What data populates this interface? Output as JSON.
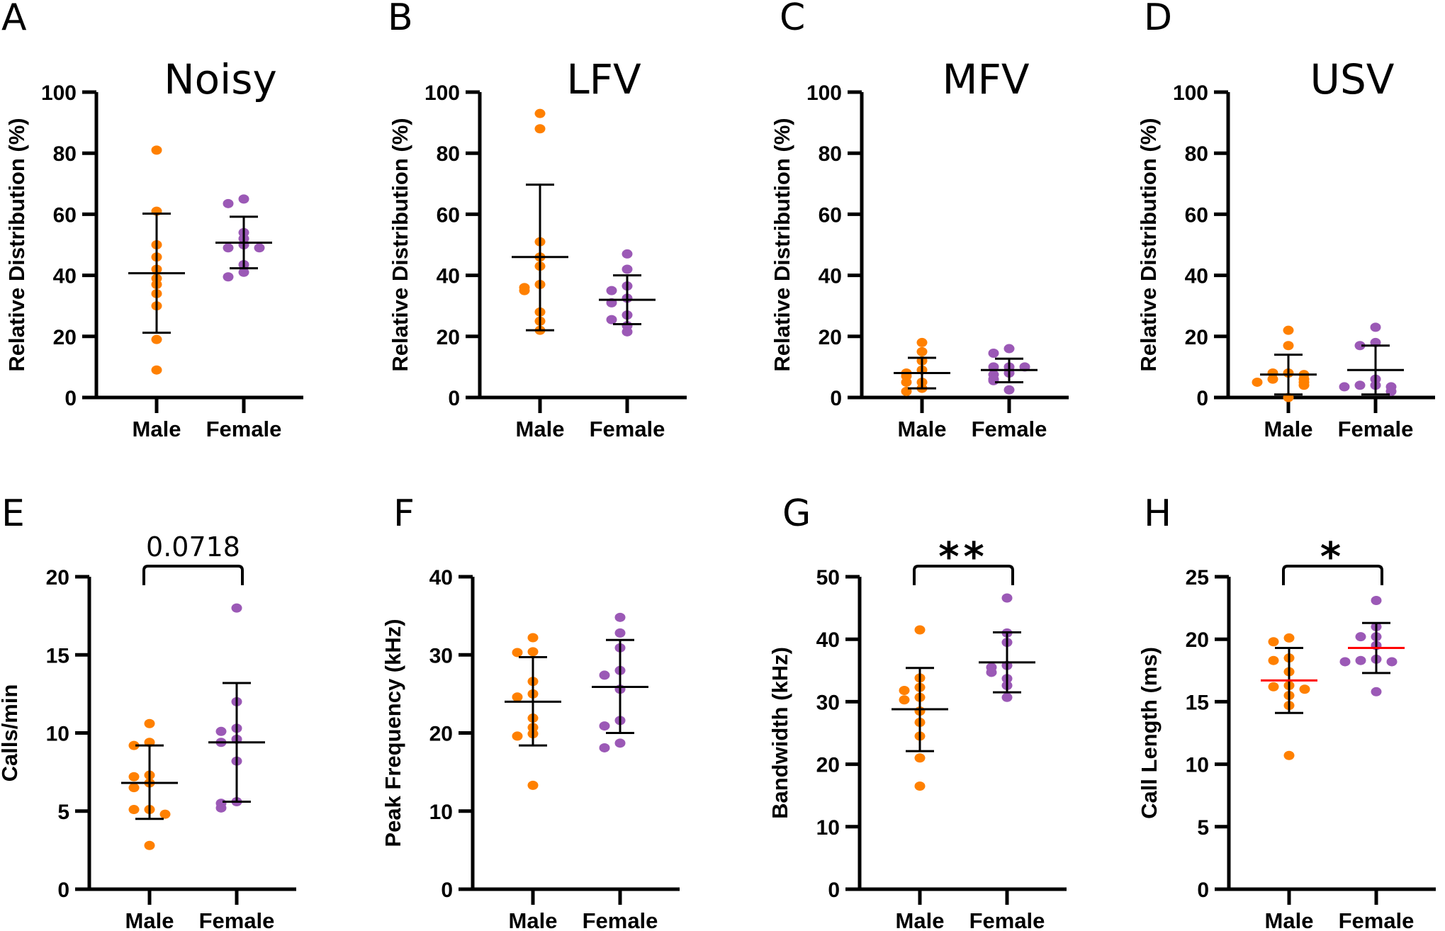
{
  "colors": {
    "male": "#ff8000",
    "female": "#9b59b6",
    "axis": "#000000",
    "mean_line_highlight": "#ff0000"
  },
  "chart_data": [
    {
      "panel": "A",
      "type": "scatter",
      "title": "Noisy",
      "ylabel": "Relative Distribution (%)",
      "categories": [
        "Male",
        "Female"
      ],
      "ylim": [
        0,
        100
      ],
      "yticks": [
        0,
        20,
        40,
        60,
        80,
        100
      ],
      "series": [
        {
          "name": "Male",
          "values": [
            81,
            61,
            50,
            46,
            42,
            39,
            37,
            34,
            30,
            19,
            9
          ],
          "mean": 40.7,
          "sd_low": 21.2,
          "sd_high": 60.2
        },
        {
          "name": "Female",
          "values": [
            65,
            63.5,
            54,
            52,
            50,
            49,
            49,
            43.5,
            41,
            39.5
          ],
          "mean": 50.7,
          "sd_low": 42.3,
          "sd_high": 59.2
        }
      ]
    },
    {
      "panel": "B",
      "type": "scatter",
      "title": "LFV",
      "ylabel": "Relative Distribution (%)",
      "categories": [
        "Male",
        "Female"
      ],
      "ylim": [
        0,
        100
      ],
      "yticks": [
        0,
        20,
        40,
        60,
        80,
        100
      ],
      "series": [
        {
          "name": "Male",
          "values": [
            93,
            88,
            51,
            46,
            43,
            37,
            36,
            35,
            28,
            25,
            22
          ],
          "mean": 46,
          "sd_low": 22,
          "sd_high": 69.7
        },
        {
          "name": "Female",
          "values": [
            47,
            42,
            36.5,
            35,
            32.5,
            31,
            27,
            25.5,
            23.5,
            21.5
          ],
          "mean": 32,
          "sd_low": 24,
          "sd_high": 40
        }
      ]
    },
    {
      "panel": "C",
      "type": "scatter",
      "title": "MFV",
      "ylabel": "Relative Distribution (%)",
      "categories": [
        "Male",
        "Female"
      ],
      "ylim": [
        0,
        100
      ],
      "yticks": [
        0,
        20,
        40,
        60,
        80,
        100
      ],
      "series": [
        {
          "name": "Male",
          "values": [
            18,
            15,
            12,
            9,
            8,
            7,
            5,
            5,
            3,
            2
          ],
          "mean": 8,
          "sd_low": 3,
          "sd_high": 13
        },
        {
          "name": "Female",
          "values": [
            16,
            14.5,
            10,
            10,
            10,
            8,
            7.5,
            6,
            5.5,
            2.5
          ],
          "mean": 9,
          "sd_low": 5,
          "sd_high": 12.7
        }
      ]
    },
    {
      "panel": "D",
      "type": "scatter",
      "title": "USV",
      "ylabel": "Relative Distribution (%)",
      "categories": [
        "Male",
        "Female"
      ],
      "ylim": [
        0,
        100
      ],
      "yticks": [
        0,
        20,
        40,
        60,
        80,
        100
      ],
      "series": [
        {
          "name": "Male",
          "values": [
            22,
            17,
            8,
            8,
            7.5,
            6,
            6,
            5,
            5,
            4,
            0
          ],
          "mean": 7.5,
          "sd_low": 1,
          "sd_high": 14
        },
        {
          "name": "Female",
          "values": [
            23,
            18,
            17,
            6,
            4,
            4,
            3.5,
            3.5,
            2
          ],
          "mean": 9,
          "sd_low": 1,
          "sd_high": 17
        }
      ]
    },
    {
      "panel": "E",
      "type": "scatter",
      "title": "",
      "ylabel": "Calls/min",
      "categories": [
        "Male",
        "Female"
      ],
      "ylim": [
        0,
        20
      ],
      "yticks": [
        0,
        5,
        10,
        15,
        20
      ],
      "annotation": "0.0718",
      "series": [
        {
          "name": "Male",
          "values": [
            10.6,
            9.4,
            9.2,
            7.3,
            7.2,
            6.8,
            6.5,
            5.1,
            5.1,
            4.8,
            2.8
          ],
          "mean": 6.8,
          "sd_low": 4.5,
          "sd_high": 9.2
        },
        {
          "name": "Female",
          "values": [
            18,
            12,
            10.3,
            10.1,
            9.6,
            9.4,
            8.2,
            5.6,
            5.5,
            5.2
          ],
          "mean": 9.4,
          "sd_low": 5.6,
          "sd_high": 13.2
        }
      ]
    },
    {
      "panel": "F",
      "type": "scatter",
      "title": "",
      "ylabel": "Peak Frequency (kHz)",
      "categories": [
        "Male",
        "Female"
      ],
      "ylim": [
        0,
        40
      ],
      "yticks": [
        0,
        10,
        20,
        30,
        40
      ],
      "series": [
        {
          "name": "Male",
          "values": [
            32.2,
            30.4,
            30.3,
            26.6,
            25,
            24.6,
            21.9,
            20.7,
            19.9,
            19.6,
            13.3
          ],
          "mean": 24,
          "sd_low": 18.4,
          "sd_high": 29.7
        },
        {
          "name": "Female",
          "values": [
            34.8,
            32.8,
            30.9,
            28,
            27.4,
            25.6,
            21.6,
            20.9,
            18.7,
            18.1
          ],
          "mean": 25.9,
          "sd_low": 20,
          "sd_high": 31.9
        }
      ]
    },
    {
      "panel": "G",
      "type": "scatter",
      "title": "",
      "ylabel": "Bandwidth (kHz)",
      "categories": [
        "Male",
        "Female"
      ],
      "ylim": [
        0,
        50
      ],
      "yticks": [
        0,
        10,
        20,
        30,
        40,
        50
      ],
      "annotation": "**",
      "series": [
        {
          "name": "Male",
          "values": [
            41.5,
            33.8,
            32.3,
            31.8,
            30.7,
            30.3,
            28.5,
            26.7,
            24.5,
            21,
            16.5
          ],
          "mean": 28.8,
          "sd_low": 22.1,
          "sd_high": 35.4
        },
        {
          "name": "Female",
          "values": [
            46.6,
            41,
            39.5,
            35.8,
            35.5,
            34.7,
            33.7,
            32.6,
            30.7
          ],
          "mean": 36.3,
          "sd_low": 31.5,
          "sd_high": 41.1
        }
      ]
    },
    {
      "panel": "H",
      "type": "scatter",
      "title": "",
      "ylabel": "Call Length (ms)",
      "categories": [
        "Male",
        "Female"
      ],
      "ylim": [
        0,
        25
      ],
      "yticks": [
        0,
        5,
        10,
        15,
        20,
        25
      ],
      "annotation": "*",
      "mean_line_red": true,
      "series": [
        {
          "name": "Male",
          "values": [
            20.1,
            19.8,
            18.5,
            18.3,
            17.4,
            16.3,
            16.2,
            16,
            15.5,
            14.7,
            10.7
          ],
          "mean": 16.7,
          "sd_low": 14.1,
          "sd_high": 19.3
        },
        {
          "name": "Female",
          "values": [
            23.1,
            21,
            20.2,
            20.2,
            19.5,
            18.4,
            18.3,
            18.2,
            18.2,
            15.8
          ],
          "mean": 19.3,
          "sd_low": 17.3,
          "sd_high": 21.3
        }
      ]
    }
  ]
}
